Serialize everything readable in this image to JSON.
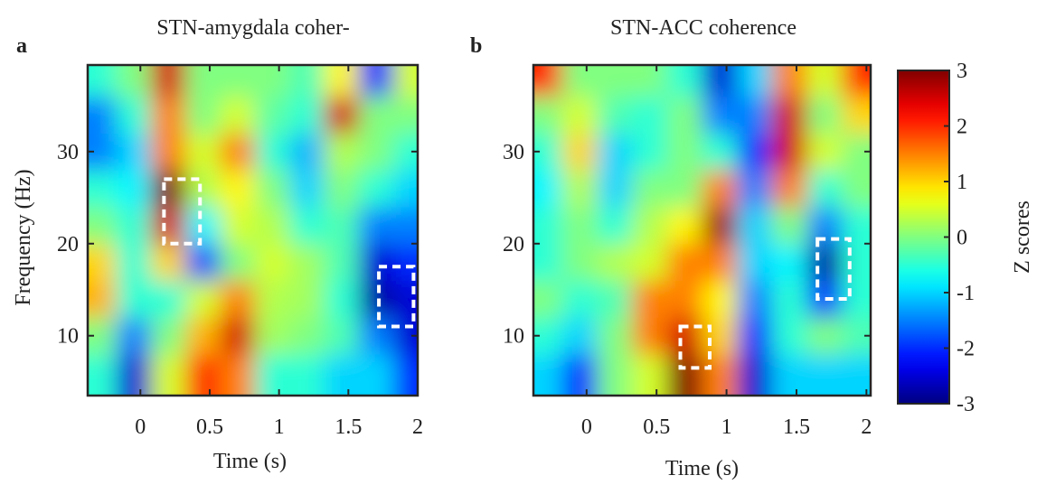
{
  "chart_data": [
    {
      "type": "heatmap",
      "panel_label": "a",
      "title": "STN-amygdala coher-",
      "xlabel": "Time (s)",
      "ylabel": "Frequency (Hz)",
      "xlim": [
        -0.38,
        2
      ],
      "ylim": [
        3.5,
        39.4
      ],
      "xticks": [
        0,
        0.5,
        1,
        1.5,
        2
      ],
      "yticks": [
        10,
        20,
        30
      ],
      "x": [
        -0.3,
        -0.05,
        0.2,
        0.45,
        0.7,
        0.95,
        1.2,
        1.45,
        1.7,
        1.95
      ],
      "y": [
        6,
        10,
        14,
        18,
        22,
        26,
        30,
        34,
        38
      ],
      "z": [
        [
          -0.5,
          -2.5,
          0.5,
          2,
          1.5,
          -0.5,
          -0.5,
          -1,
          -1,
          -2
        ],
        [
          0,
          -1.5,
          0,
          1.2,
          2.5,
          0.2,
          0,
          -0.3,
          -1.5,
          -2.5
        ],
        [
          1.2,
          -0.5,
          -0.5,
          0.5,
          1.5,
          0.3,
          0.2,
          -0.5,
          -2.8,
          -2.5
        ],
        [
          1,
          -0.5,
          1,
          -1.8,
          0,
          0.5,
          0.2,
          -0.3,
          -2.5,
          -2
        ],
        [
          0,
          -0.5,
          2.5,
          -0.8,
          0.5,
          0.3,
          -0.5,
          -0.3,
          -1.5,
          -1.5
        ],
        [
          -0.5,
          -0.8,
          3,
          0.3,
          0.8,
          0,
          -1,
          0,
          -0.5,
          -1
        ],
        [
          -1.5,
          -1,
          1.5,
          0.5,
          1.5,
          -0.5,
          -1.2,
          0.3,
          0,
          -0.5
        ],
        [
          -1.5,
          -0.5,
          1.5,
          0,
          0.5,
          -0.2,
          -0.5,
          2.5,
          0,
          0
        ],
        [
          -0.5,
          0,
          2.5,
          0,
          0,
          0,
          -0.3,
          0.8,
          -2,
          0.5
        ]
      ],
      "highlight_boxes": [
        {
          "x": [
            0.17,
            0.43
          ],
          "y": [
            20,
            27
          ]
        },
        {
          "x": [
            1.72,
            1.97
          ],
          "y": [
            11,
            17.5
          ]
        }
      ]
    },
    {
      "type": "heatmap",
      "panel_label": "b",
      "title": "STN-ACC coherence",
      "xlabel": "Time (s)",
      "xlim": [
        -0.38,
        2.03
      ],
      "ylim": [
        3.5,
        39.4
      ],
      "xticks": [
        0,
        0.5,
        1,
        1.5,
        2
      ],
      "yticks": [
        10,
        20,
        30
      ],
      "x": [
        -0.3,
        -0.05,
        0.2,
        0.45,
        0.7,
        0.95,
        1.2,
        1.45,
        1.7,
        1.95
      ],
      "y": [
        6,
        10,
        14,
        18,
        22,
        26,
        30,
        34,
        38
      ],
      "z": [
        [
          -1,
          -2,
          0,
          0.5,
          3,
          1.5,
          -2.5,
          -1,
          -1,
          -1
        ],
        [
          -0.5,
          -1,
          0,
          1.5,
          2.5,
          1,
          -2,
          -0.5,
          0,
          -0.3
        ],
        [
          0,
          -0.5,
          -0.3,
          1.5,
          1.5,
          0.8,
          -1.5,
          -0.5,
          -2,
          -0.5
        ],
        [
          -0.5,
          0,
          0.3,
          0.5,
          1.5,
          1.5,
          -1,
          -0.8,
          -2.8,
          -0.5
        ],
        [
          -0.5,
          0,
          -0.5,
          0.3,
          0.8,
          2.8,
          -1,
          0,
          -1.5,
          -0.5
        ],
        [
          -0.8,
          0.3,
          -1,
          0,
          0,
          1.5,
          -1.5,
          1.5,
          -0.5,
          0
        ],
        [
          -0.5,
          1,
          -1,
          -0.5,
          0,
          -0.5,
          -2,
          2.5,
          0.5,
          0
        ],
        [
          0,
          0.5,
          -0.3,
          -0.5,
          0,
          -1.5,
          -1.5,
          2.5,
          0,
          1
        ],
        [
          2,
          0,
          0,
          0,
          -0.5,
          -2.5,
          -1,
          1.5,
          0.5,
          2
        ]
      ],
      "highlight_boxes": [
        {
          "x": [
            0.67,
            0.88
          ],
          "y": [
            6.5,
            11
          ]
        },
        {
          "x": [
            1.65,
            1.88
          ],
          "y": [
            14,
            20.5
          ]
        }
      ]
    }
  ],
  "colorbar": {
    "colormap": "jet",
    "lim": [
      -3,
      3
    ],
    "ticks": [
      -3,
      -2,
      -1,
      0,
      1,
      2,
      3
    ],
    "label": "Z scores"
  }
}
